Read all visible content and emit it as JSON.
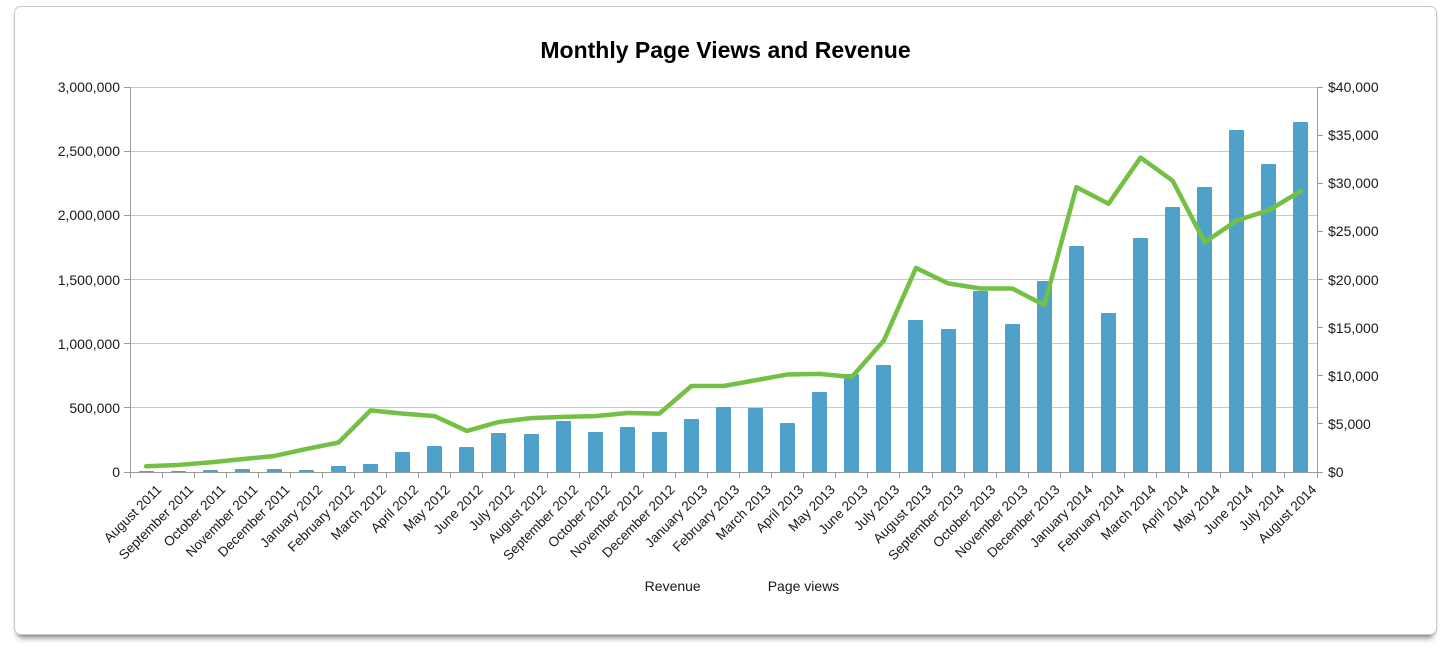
{
  "page": {
    "title": "Monthly Page Views and Revenue"
  },
  "chart_data": {
    "type": "combo-bar-line",
    "title": "Monthly Page Views and Revenue",
    "categories": [
      "August 2011",
      "September 2011",
      "October 2011",
      "November 2011",
      "December 2011",
      "January 2012",
      "February 2012",
      "March 2012",
      "April 2012",
      "May 2012",
      "June 2012",
      "July 2012",
      "August 2012",
      "September 2012",
      "October 2012",
      "November 2012",
      "December 2012",
      "January 2013",
      "February 2013",
      "March 2013",
      "April 2013",
      "May 2013",
      "June 2013",
      "July 2013",
      "August 2013",
      "September 2013",
      "October 2013",
      "November 2013",
      "December 2013",
      "January 2014",
      "February 2014",
      "March 2014",
      "April 2014",
      "May 2014",
      "June 2014",
      "July 2014",
      "August 2014"
    ],
    "series": [
      {
        "name": "Revenue",
        "type": "bar",
        "axis": "right",
        "color": "#4EA2CA",
        "values": [
          100,
          130,
          160,
          350,
          300,
          240,
          600,
          800,
          2050,
          2700,
          2550,
          4100,
          3950,
          5300,
          4150,
          4650,
          4150,
          5500,
          6750,
          6700,
          5100,
          8350,
          10150,
          11100,
          15800,
          14900,
          18800,
          15400,
          19800,
          23500,
          16500,
          24300,
          27500,
          29600,
          35500,
          32000,
          36400
        ]
      },
      {
        "name": "Page views",
        "type": "line",
        "axis": "left",
        "color": "#74C045",
        "values": [
          45000,
          55000,
          75000,
          100000,
          125000,
          180000,
          230000,
          480000,
          455000,
          435000,
          320000,
          390000,
          420000,
          430000,
          435000,
          460000,
          455000,
          670000,
          670000,
          715000,
          760000,
          765000,
          740000,
          1025000,
          1590000,
          1470000,
          1430000,
          1430000,
          1300000,
          2220000,
          2090000,
          2450000,
          2270000,
          1790000,
          1960000,
          2040000,
          2190000
        ]
      }
    ],
    "left_axis": {
      "min": 0,
      "max": 3000000,
      "step": 500000,
      "tick_labels": [
        "0",
        "500,000",
        "1,000,000",
        "1,500,000",
        "2,000,000",
        "2,500,000",
        "3,000,000"
      ]
    },
    "right_axis": {
      "min": 0,
      "max": 40000,
      "step": 5000,
      "tick_labels": [
        "$0",
        "$5,000",
        "$10,000",
        "$15,000",
        "$20,000",
        "$25,000",
        "$30,000",
        "$35,000",
        "$40,000"
      ]
    },
    "legend": {
      "position": "bottom",
      "entries": [
        "Revenue",
        "Page views"
      ]
    },
    "grid": true,
    "gridline_color": "#c9c9c9",
    "axis_color": "#9b9b9b",
    "text_color": "#1a1a1a"
  }
}
